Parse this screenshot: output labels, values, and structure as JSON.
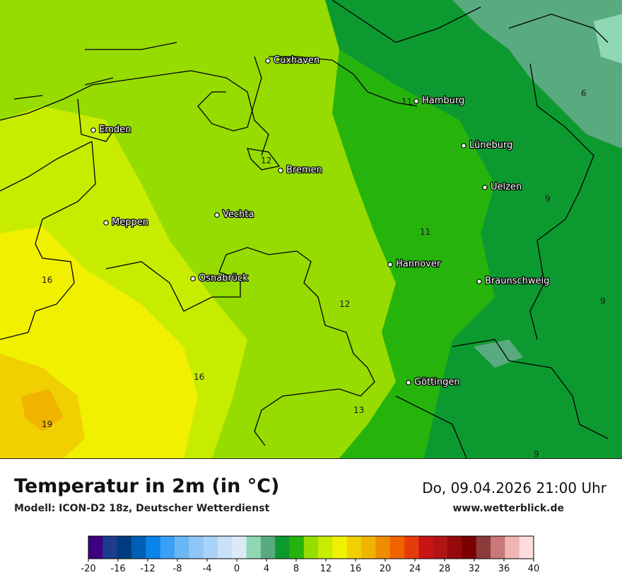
{
  "header": {
    "title": "Temperatur in 2m (in °C)",
    "model": "Modell: ICON-D2 18z, Deutscher Wetterdienst",
    "datetime": "Do, 09.04.2026 21:00 Uhr",
    "website": "www.wetterblick.de"
  },
  "cities": [
    {
      "name": "Cuxhaven"
    },
    {
      "name": "Hamburg"
    },
    {
      "name": "Emden"
    },
    {
      "name": "Lüneburg"
    },
    {
      "name": "Bremen"
    },
    {
      "name": "Uelzen"
    },
    {
      "name": "Vechta"
    },
    {
      "name": "Meppen"
    },
    {
      "name": "Hannover"
    },
    {
      "name": "Osnabrück"
    },
    {
      "name": "Braunschweig"
    },
    {
      "name": "Göttingen"
    }
  ],
  "isotherm_labels": [
    "11",
    "6",
    "12",
    "9",
    "11",
    "16",
    "12",
    "9",
    "16",
    "13",
    "19",
    "9"
  ],
  "legend": {
    "ticks": [
      "-20",
      "-16",
      "-12",
      "-8",
      "-4",
      "0",
      "4",
      "8",
      "12",
      "16",
      "20",
      "24",
      "28",
      "32",
      "36",
      "40"
    ],
    "colors": [
      "#3c0080",
      "#1e3c8c",
      "#003c7d",
      "#005fb4",
      "#0a84e8",
      "#3aa0f5",
      "#6ab6f5",
      "#8fc6f5",
      "#a8d2f8",
      "#c8e0f8",
      "#dceaf8",
      "#90d8b4",
      "#5aaa80",
      "#0c9a30",
      "#26b40c",
      "#96dc00",
      "#c8ec00",
      "#f0f000",
      "#f0d000",
      "#f0b400",
      "#f08c00",
      "#f06400",
      "#e63c0a",
      "#c81414",
      "#b01414",
      "#960a0a",
      "#7a0000",
      "#8c3a3a",
      "#c87878",
      "#f0b4b4",
      "#fcdcdc"
    ]
  }
}
